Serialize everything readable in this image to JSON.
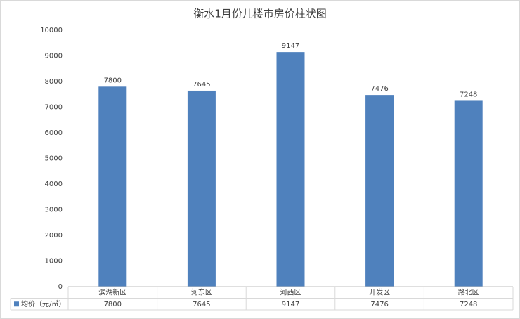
{
  "chart_data": {
    "type": "bar",
    "title": "衡水1月份儿楼市房价柱状图",
    "categories": [
      "滨湖新区",
      "河东区",
      "河西区",
      "开发区",
      "路北区"
    ],
    "series": [
      {
        "name": "均价（元/㎡）",
        "color": "#4f81bd",
        "values": [
          7800,
          7645,
          9147,
          7476,
          7248
        ]
      }
    ],
    "ylim": [
      0,
      10000
    ],
    "yticks": [
      0,
      1000,
      2000,
      3000,
      4000,
      5000,
      6000,
      7000,
      8000,
      9000,
      10000
    ],
    "grid": false,
    "data_table": true
  }
}
